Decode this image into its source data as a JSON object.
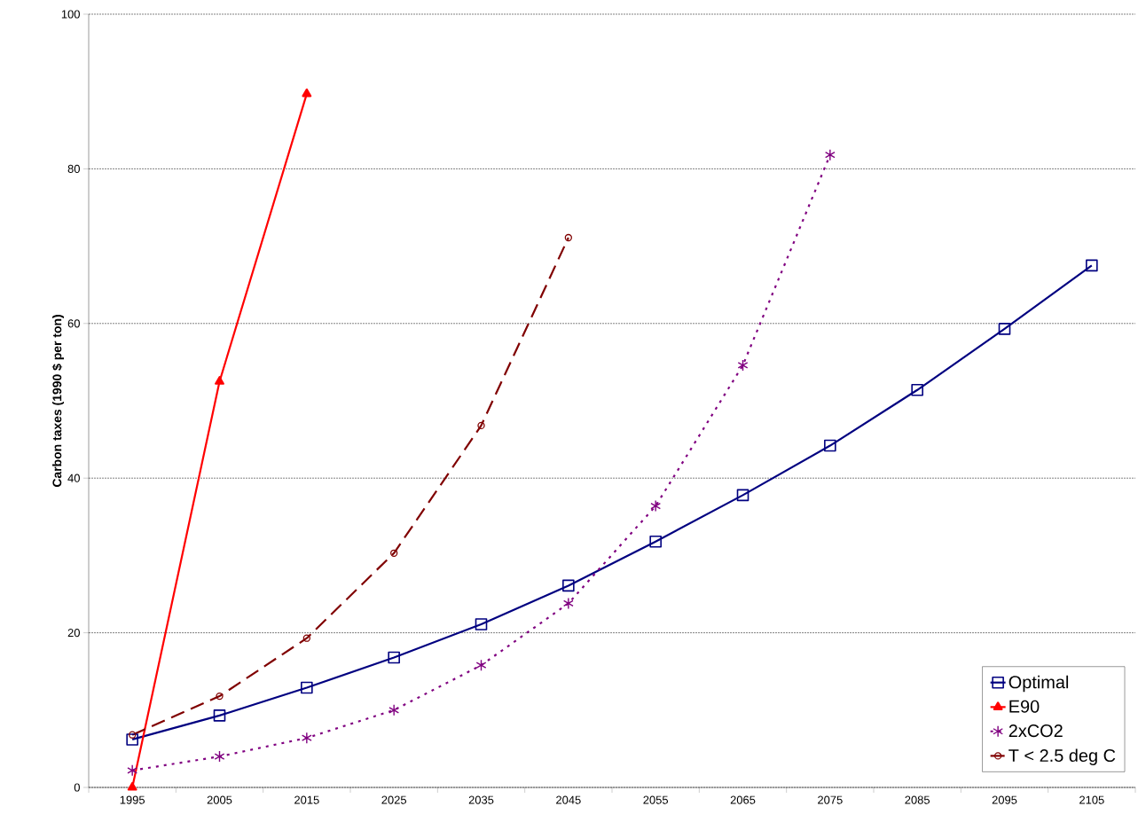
{
  "chart_data": {
    "type": "line",
    "ylabel": "Carbon taxes (1990 $ per ton)",
    "categories": [
      "1995",
      "2005",
      "2015",
      "2025",
      "2035",
      "2045",
      "2055",
      "2065",
      "2075",
      "2085",
      "2095",
      "2105"
    ],
    "ylim": [
      0,
      100
    ],
    "yticks": [
      0,
      20,
      40,
      60,
      80,
      100
    ],
    "grid": "y",
    "legend": "bottom right",
    "series": [
      {
        "name": "Optimal",
        "color": "#000080",
        "marker": "square",
        "line_style": "solid",
        "values": [
          6.2,
          9.3,
          12.9,
          16.8,
          21.1,
          26.1,
          31.8,
          37.8,
          44.2,
          51.4,
          59.3,
          67.5
        ]
      },
      {
        "name": "E90",
        "color": "#ff0000",
        "marker": "triangle",
        "line_style": "solid",
        "values": [
          0,
          52.5,
          89.7,
          null,
          null,
          null,
          null,
          null,
          null,
          null,
          null,
          null
        ]
      },
      {
        "name": "2xCO2",
        "color": "#800080",
        "marker": "cross",
        "line_style": "dotted",
        "values": [
          2.2,
          4.0,
          6.4,
          10.0,
          15.8,
          23.8,
          36.4,
          54.6,
          81.8,
          null,
          null,
          null
        ]
      },
      {
        "name": "T < 2.5 deg C",
        "color": "#800000",
        "marker": "circle",
        "line_style": "dashed",
        "values": [
          6.8,
          11.8,
          19.3,
          30.3,
          46.8,
          71.1,
          null,
          null,
          null,
          null,
          null,
          null
        ]
      }
    ]
  }
}
